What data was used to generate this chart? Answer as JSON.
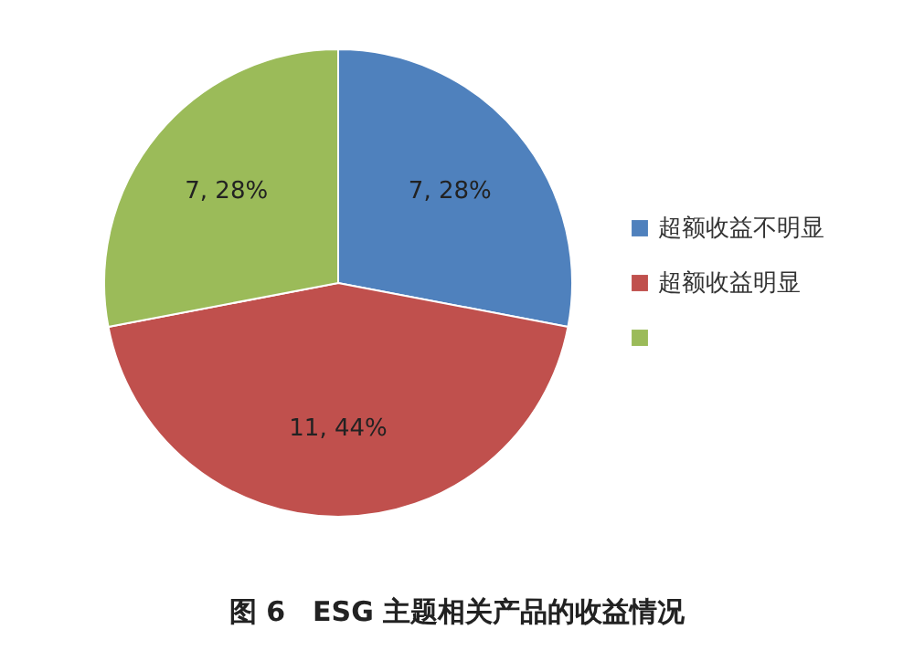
{
  "chart_data": {
    "type": "pie",
    "categories": [
      "超额收益不明显",
      "超额收益明显",
      null
    ],
    "values": [
      7,
      11,
      7
    ],
    "colors": [
      "#4f81bd",
      "#c0504d",
      "#9bbb59"
    ],
    "value_labels": [
      "7, 28%",
      "11, 44%",
      "7, 28%"
    ],
    "legend": "right",
    "annotations": [
      "图 6　ESG 主题相关产品的收益情况"
    ]
  }
}
